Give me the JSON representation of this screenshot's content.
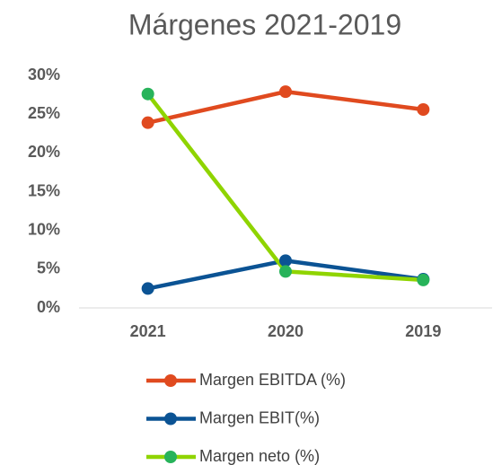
{
  "chart_data": {
    "type": "line",
    "title": "Márgenes 2021-2019",
    "categories": [
      "2021",
      "2020",
      "2019"
    ],
    "series": [
      {
        "name": "Margen EBITDA (%)",
        "color": "#e04a1f",
        "marker_color": "#e04a1f",
        "values": [
          23.9,
          27.9,
          25.6
        ]
      },
      {
        "name": "Margen EBIT(%)",
        "color": "#0b5394",
        "marker_color": "#0b5394",
        "values": [
          2.5,
          6.1,
          3.7
        ]
      },
      {
        "name": "Margen neto (%)",
        "color": "#8fd400",
        "marker_color": "#27b35a",
        "values": [
          27.6,
          4.7,
          3.6
        ]
      }
    ],
    "ylim": [
      0,
      30
    ],
    "yticks": [
      {
        "value": 0,
        "label": "0%"
      },
      {
        "value": 5,
        "label": "5%"
      },
      {
        "value": 10,
        "label": "10%"
      },
      {
        "value": 15,
        "label": "15%"
      },
      {
        "value": 20,
        "label": "20%"
      },
      {
        "value": 25,
        "label": "25%"
      },
      {
        "value": 30,
        "label": "30%"
      }
    ],
    "grid": false,
    "legend": "bottom"
  }
}
